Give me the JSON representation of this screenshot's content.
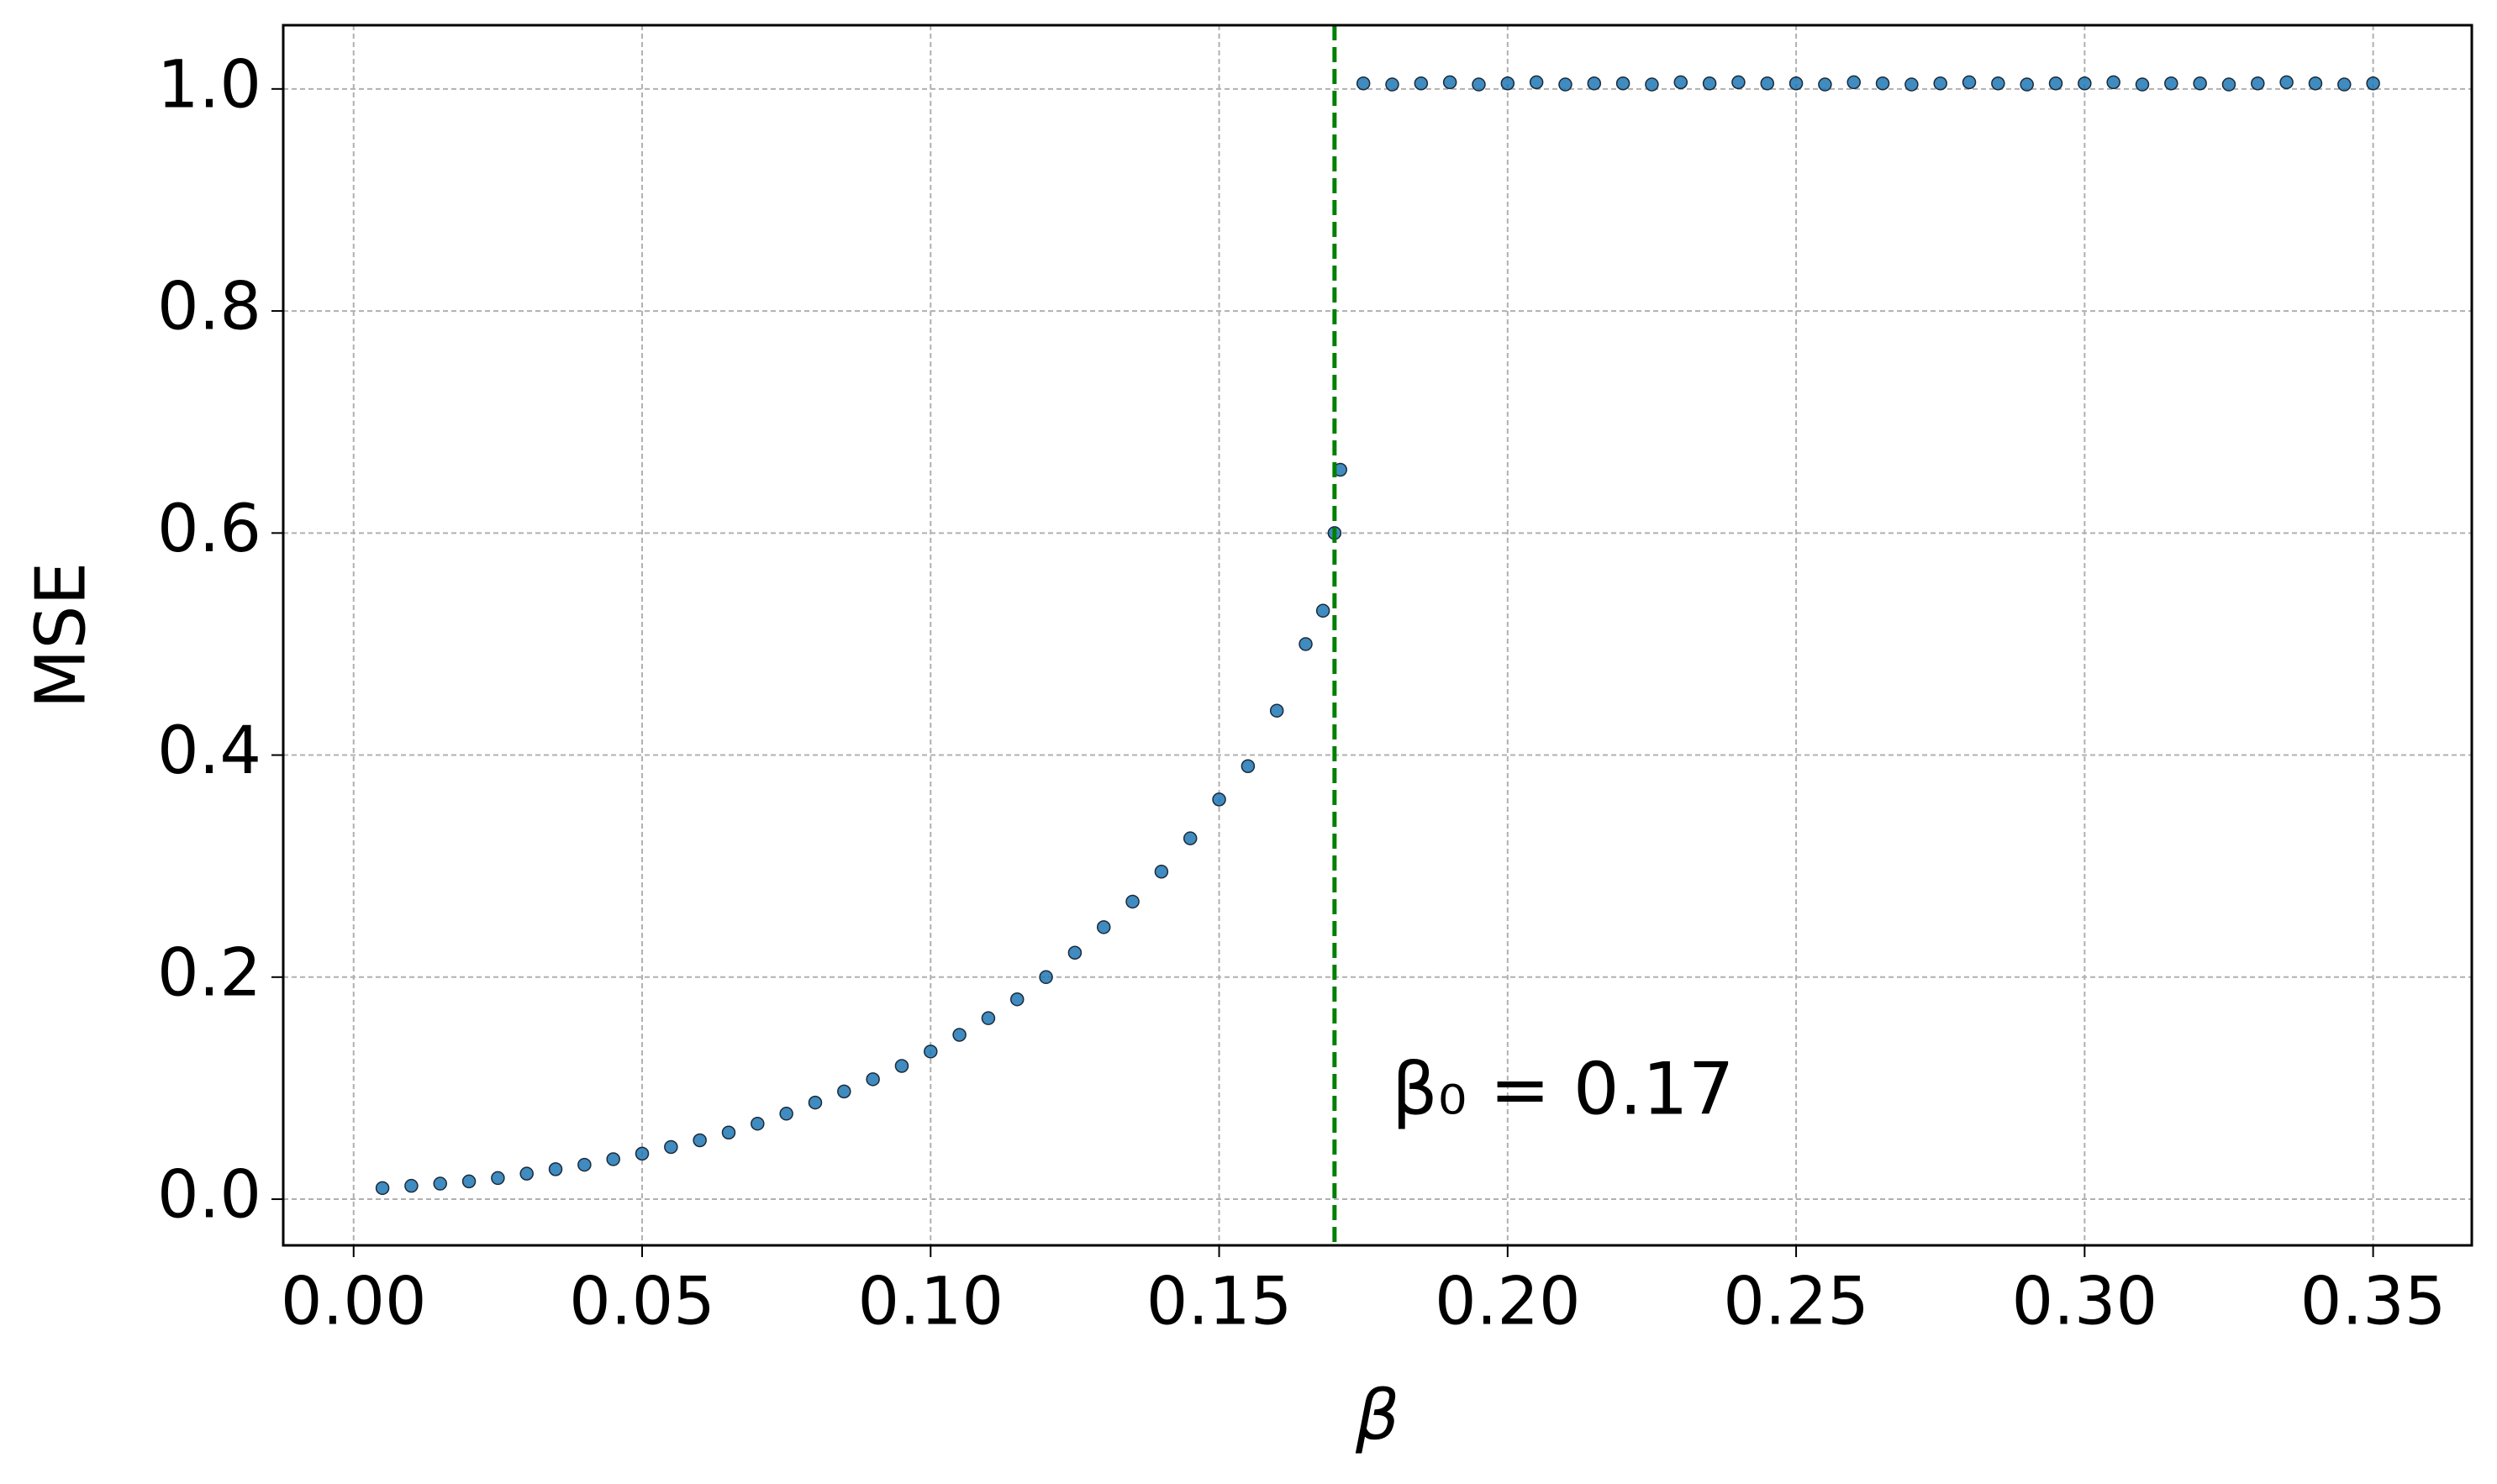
{
  "chart_data": {
    "type": "scatter",
    "xlabel": "β",
    "ylabel": "MSE",
    "x": [
      0.005,
      0.01,
      0.015,
      0.02,
      0.025,
      0.03,
      0.035,
      0.04,
      0.045,
      0.05,
      0.055,
      0.06,
      0.065,
      0.07,
      0.075,
      0.08,
      0.085,
      0.09,
      0.095,
      0.1,
      0.105,
      0.11,
      0.115,
      0.12,
      0.125,
      0.13,
      0.135,
      0.14,
      0.145,
      0.15,
      0.155,
      0.16,
      0.165,
      0.168,
      0.17,
      0.171,
      0.175,
      0.18,
      0.185,
      0.19,
      0.195,
      0.2,
      0.205,
      0.21,
      0.215,
      0.22,
      0.225,
      0.23,
      0.235,
      0.24,
      0.245,
      0.25,
      0.255,
      0.26,
      0.265,
      0.27,
      0.275,
      0.28,
      0.285,
      0.29,
      0.295,
      0.3,
      0.305,
      0.31,
      0.315,
      0.32,
      0.325,
      0.33,
      0.335,
      0.34,
      0.345,
      0.35
    ],
    "series": [
      {
        "name": "MSE",
        "color": "#1f77b4",
        "edgecolor": "#1a2a3a",
        "values": [
          0.01,
          0.012,
          0.014,
          0.016,
          0.019,
          0.023,
          0.027,
          0.031,
          0.036,
          0.041,
          0.047,
          0.053,
          0.06,
          0.068,
          0.077,
          0.087,
          0.097,
          0.108,
          0.12,
          0.133,
          0.148,
          0.163,
          0.18,
          0.2,
          0.222,
          0.245,
          0.268,
          0.295,
          0.325,
          0.36,
          0.39,
          0.44,
          0.5,
          0.53,
          0.6,
          0.657,
          1.005,
          1.004,
          1.005,
          1.006,
          1.004,
          1.005,
          1.006,
          1.004,
          1.005,
          1.005,
          1.004,
          1.006,
          1.005,
          1.006,
          1.005,
          1.005,
          1.004,
          1.006,
          1.005,
          1.004,
          1.005,
          1.006,
          1.005,
          1.004,
          1.005,
          1.005,
          1.006,
          1.004,
          1.005,
          1.005,
          1.004,
          1.005,
          1.006,
          1.005,
          1.004,
          1.005
        ]
      }
    ],
    "xlim": [
      -0.0122,
      0.3671
    ],
    "ylim": [
      -0.0416,
      1.0574
    ],
    "xticks": [
      {
        "value": 0,
        "label": "0.00"
      },
      {
        "value": 0.05,
        "label": "0.05"
      },
      {
        "value": 0.1,
        "label": "0.10"
      },
      {
        "value": 0.15,
        "label": "0.15"
      },
      {
        "value": 0.2,
        "label": "0.20"
      },
      {
        "value": 0.25,
        "label": "0.25"
      },
      {
        "value": 0.3,
        "label": "0.30"
      },
      {
        "value": 0.35,
        "label": "0.35"
      }
    ],
    "yticks": [
      {
        "value": 0,
        "label": "0.0"
      },
      {
        "value": 0.2,
        "label": "0.2"
      },
      {
        "value": 0.4,
        "label": "0.4"
      },
      {
        "value": 0.6,
        "label": "0.6"
      },
      {
        "value": 0.8,
        "label": "0.8"
      },
      {
        "value": 1,
        "label": "1.0"
      }
    ],
    "grid": true,
    "vline": {
      "x": 0.17,
      "color": "#008000",
      "label": "β₀ = 0.17"
    }
  }
}
